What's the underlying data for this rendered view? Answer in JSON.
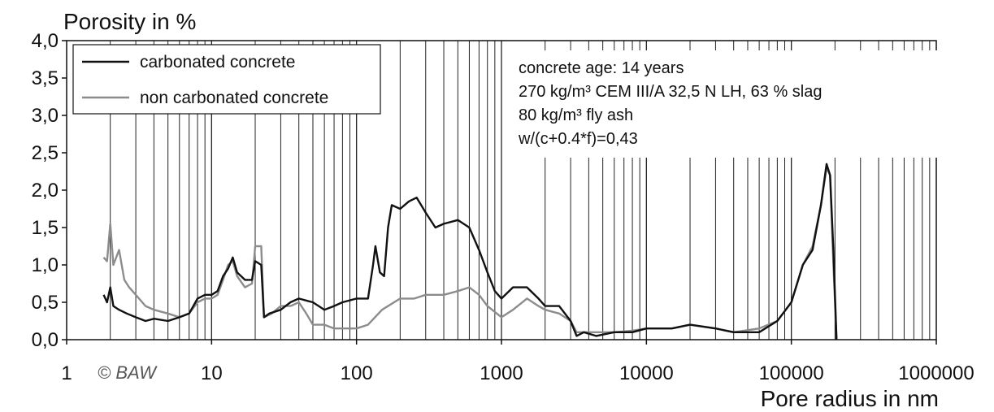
{
  "chart_data": {
    "type": "line",
    "title": "",
    "ylabel": "Porosity in %",
    "xlabel": "Pore radius in nm",
    "xscale": "log",
    "xlim": [
      1,
      1000000
    ],
    "ylim": [
      0,
      4.0
    ],
    "x_ticks": [
      "1",
      "10",
      "100",
      "1000",
      "10000",
      "100000",
      "1000000"
    ],
    "y_ticks": [
      "0,0",
      "0,5",
      "1,0",
      "1,5",
      "2,0",
      "2,5",
      "3,0",
      "3,5",
      "4,0"
    ],
    "grid": "vertical log minor and major lines",
    "legend": {
      "placement": "top-left"
    },
    "annotation_lines": [
      "concrete age: 14 years",
      "270 kg/m³ CEM III/A 32,5 N LH, 63 % slag",
      "80 kg/m³ fly ash",
      "w/(c+0.4*f)=0,43"
    ],
    "copyright": "© BAW",
    "series": [
      {
        "name": "carbonated concrete",
        "color": "#111111",
        "points": [
          [
            1.8,
            0.6
          ],
          [
            1.9,
            0.5
          ],
          [
            2.0,
            0.7
          ],
          [
            2.1,
            0.45
          ],
          [
            2.3,
            0.4
          ],
          [
            2.6,
            0.35
          ],
          [
            3.0,
            0.3
          ],
          [
            3.5,
            0.25
          ],
          [
            4.0,
            0.28
          ],
          [
            5.0,
            0.25
          ],
          [
            6.0,
            0.3
          ],
          [
            7.0,
            0.35
          ],
          [
            8.0,
            0.55
          ],
          [
            9.0,
            0.6
          ],
          [
            10,
            0.6
          ],
          [
            11,
            0.65
          ],
          [
            12,
            0.85
          ],
          [
            13,
            0.95
          ],
          [
            14,
            1.1
          ],
          [
            15,
            0.9
          ],
          [
            17,
            0.8
          ],
          [
            19,
            0.8
          ],
          [
            20,
            1.05
          ],
          [
            22,
            1.0
          ],
          [
            23,
            0.3
          ],
          [
            25,
            0.35
          ],
          [
            30,
            0.4
          ],
          [
            35,
            0.5
          ],
          [
            40,
            0.55
          ],
          [
            50,
            0.5
          ],
          [
            60,
            0.4
          ],
          [
            70,
            0.45
          ],
          [
            80,
            0.5
          ],
          [
            100,
            0.55
          ],
          [
            120,
            0.55
          ],
          [
            130,
            1.0
          ],
          [
            135,
            1.25
          ],
          [
            145,
            0.9
          ],
          [
            155,
            0.85
          ],
          [
            165,
            1.5
          ],
          [
            175,
            1.8
          ],
          [
            200,
            1.75
          ],
          [
            230,
            1.85
          ],
          [
            260,
            1.9
          ],
          [
            300,
            1.7
          ],
          [
            350,
            1.5
          ],
          [
            400,
            1.55
          ],
          [
            500,
            1.6
          ],
          [
            600,
            1.5
          ],
          [
            700,
            1.2
          ],
          [
            800,
            0.9
          ],
          [
            900,
            0.65
          ],
          [
            1000,
            0.55
          ],
          [
            1200,
            0.7
          ],
          [
            1500,
            0.7
          ],
          [
            1800,
            0.55
          ],
          [
            2000,
            0.45
          ],
          [
            2500,
            0.45
          ],
          [
            3000,
            0.25
          ],
          [
            3300,
            0.05
          ],
          [
            3700,
            0.1
          ],
          [
            4500,
            0.05
          ],
          [
            6000,
            0.1
          ],
          [
            8000,
            0.1
          ],
          [
            10000,
            0.15
          ],
          [
            15000,
            0.15
          ],
          [
            20000,
            0.2
          ],
          [
            30000,
            0.15
          ],
          [
            40000,
            0.1
          ],
          [
            60000,
            0.1
          ],
          [
            80000,
            0.25
          ],
          [
            100000,
            0.5
          ],
          [
            120000,
            1.0
          ],
          [
            140000,
            1.2
          ],
          [
            160000,
            1.8
          ],
          [
            175000,
            2.35
          ],
          [
            185000,
            2.2
          ],
          [
            195000,
            1.2
          ],
          [
            205000,
            0.0
          ]
        ]
      },
      {
        "name": "non carbonated concrete",
        "color": "#8c8c8c",
        "points": [
          [
            1.8,
            1.1
          ],
          [
            1.9,
            1.05
          ],
          [
            2.0,
            1.55
          ],
          [
            2.1,
            1.0
          ],
          [
            2.3,
            1.2
          ],
          [
            2.5,
            0.8
          ],
          [
            2.7,
            0.7
          ],
          [
            3.0,
            0.6
          ],
          [
            3.5,
            0.45
          ],
          [
            4.0,
            0.4
          ],
          [
            5.0,
            0.35
          ],
          [
            6.0,
            0.3
          ],
          [
            7.0,
            0.35
          ],
          [
            8.0,
            0.5
          ],
          [
            9.0,
            0.55
          ],
          [
            10,
            0.55
          ],
          [
            11,
            0.6
          ],
          [
            12,
            0.8
          ],
          [
            13,
            1.0
          ],
          [
            14,
            1.05
          ],
          [
            15,
            0.85
          ],
          [
            17,
            0.7
          ],
          [
            19,
            0.75
          ],
          [
            20,
            1.25
          ],
          [
            22,
            1.25
          ],
          [
            23,
            0.3
          ],
          [
            26,
            0.35
          ],
          [
            30,
            0.45
          ],
          [
            35,
            0.45
          ],
          [
            40,
            0.5
          ],
          [
            45,
            0.35
          ],
          [
            50,
            0.2
          ],
          [
            60,
            0.2
          ],
          [
            70,
            0.15
          ],
          [
            80,
            0.15
          ],
          [
            100,
            0.15
          ],
          [
            120,
            0.2
          ],
          [
            150,
            0.4
          ],
          [
            200,
            0.55
          ],
          [
            250,
            0.55
          ],
          [
            300,
            0.6
          ],
          [
            400,
            0.6
          ],
          [
            500,
            0.65
          ],
          [
            600,
            0.7
          ],
          [
            700,
            0.6
          ],
          [
            800,
            0.45
          ],
          [
            1000,
            0.3
          ],
          [
            1200,
            0.4
          ],
          [
            1500,
            0.55
          ],
          [
            1800,
            0.45
          ],
          [
            2000,
            0.4
          ],
          [
            2500,
            0.35
          ],
          [
            3000,
            0.25
          ],
          [
            3300,
            0.1
          ],
          [
            4000,
            0.1
          ],
          [
            5000,
            0.1
          ],
          [
            6000,
            0.1
          ],
          [
            8000,
            0.12
          ],
          [
            10000,
            0.15
          ],
          [
            15000,
            0.15
          ],
          [
            20000,
            0.2
          ],
          [
            30000,
            0.15
          ],
          [
            40000,
            0.1
          ],
          [
            60000,
            0.15
          ],
          [
            80000,
            0.25
          ],
          [
            100000,
            0.5
          ],
          [
            120000,
            1.0
          ],
          [
            140000,
            1.25
          ],
          [
            160000,
            1.8
          ],
          [
            175000,
            2.3
          ],
          [
            185000,
            2.2
          ],
          [
            195000,
            1.0
          ],
          [
            205000,
            0.0
          ]
        ]
      }
    ]
  }
}
